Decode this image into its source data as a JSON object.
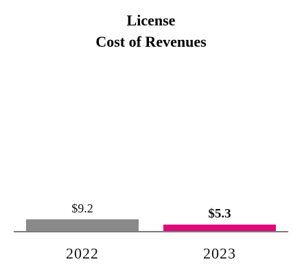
{
  "chart_data": {
    "type": "bar",
    "title": [
      "License",
      "Cost of Revenues"
    ],
    "categories": [
      "2022",
      "2023"
    ],
    "values": [
      9.2,
      5.3
    ],
    "value_labels": [
      "$9.2",
      "$5.3"
    ],
    "value_label_bold": [
      false,
      true
    ],
    "colors": [
      "#8a8a8a",
      "#e0097a"
    ],
    "axis_color": "#7a7a7a",
    "ylim": [
      0,
      100
    ],
    "grid": false,
    "legend": "none"
  }
}
